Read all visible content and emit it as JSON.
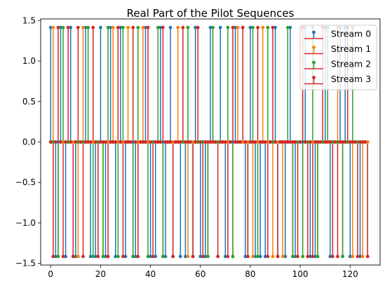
{
  "chart_data": {
    "type": "stem",
    "title": "Real Part of the Pilot Sequences",
    "xlabel": "",
    "ylabel": "",
    "xlim": [
      -4,
      132
    ],
    "ylim": [
      -1.52,
      1.52
    ],
    "xticks": [
      0,
      20,
      40,
      60,
      80,
      100,
      120
    ],
    "yticks": [
      -1.5,
      -1.0,
      -0.5,
      0.0,
      0.5,
      1.0,
      1.5
    ],
    "ytick_labels": [
      "−1.5",
      "−1.0",
      "−0.5",
      "0.0",
      "0.5",
      "1.0",
      "1.5"
    ],
    "grid": false,
    "legend_position": "top-right",
    "baseline_color": "#d62728",
    "length": 128,
    "amplitude": 1.414,
    "series": [
      {
        "name": "Stream 0",
        "color": "#1f77b4",
        "pos": [
          0,
          4,
          8,
          14,
          20,
          24,
          28,
          38,
          44,
          48,
          58,
          64,
          68,
          74,
          80,
          90,
          96,
          102,
          110,
          116,
          118
        ],
        "neg": [
          2,
          6,
          10,
          16,
          18,
          22,
          26,
          30,
          34,
          40,
          42,
          46,
          52,
          54,
          60,
          62,
          70,
          78,
          82,
          84,
          86,
          94,
          98,
          104,
          106,
          112,
          120,
          124
        ]
      },
      {
        "name": "Stream 1",
        "color": "#ff7f0e",
        "pos": [
          1,
          13,
          25,
          31,
          37,
          51,
          65,
          75,
          85,
          101,
          115
        ],
        "neg": [
          3,
          11,
          21,
          33,
          45,
          55,
          63,
          73,
          81,
          89,
          93,
          97,
          107,
          117,
          121,
          125
        ]
      },
      {
        "name": "Stream 2",
        "color": "#2ca02c",
        "pos": [
          5,
          15,
          23,
          29,
          35,
          43,
          55,
          65,
          71,
          77,
          81,
          87,
          95,
          105,
          111,
          121
        ],
        "neg": [
          3,
          9,
          17,
          21,
          27,
          33,
          39,
          45,
          49,
          57,
          63,
          73,
          79,
          83,
          91,
          97,
          101,
          107,
          117,
          127
        ]
      },
      {
        "name": "Stream 3",
        "color": "#d62728",
        "pos": [
          3,
          7,
          11,
          17,
          27,
          33,
          39,
          45,
          53,
          59,
          67,
          73,
          77,
          83,
          89,
          101,
          109,
          119
        ],
        "neg": [
          1,
          5,
          9,
          13,
          19,
          23,
          29,
          35,
          41,
          49,
          57,
          61,
          67,
          71,
          79,
          87,
          91,
          99,
          103,
          105,
          113,
          115,
          123,
          127
        ]
      }
    ]
  }
}
